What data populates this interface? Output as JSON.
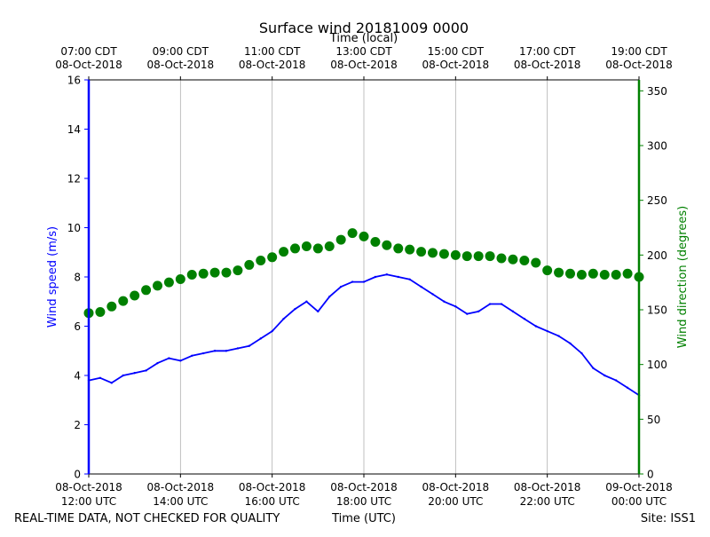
{
  "chart_data": {
    "type": "line+scatter",
    "title": "Surface wind 20181009 0000",
    "top_axis_title": "Time (local)",
    "xlabel": "Time (UTC)",
    "ylabel_left": "Wind speed (m/s)",
    "ylabel_right": "Wind direction (degrees)",
    "x_range_hours_utc": [
      12,
      24
    ],
    "ylim_left": [
      0,
      16
    ],
    "ylim_right": [
      0,
      360
    ],
    "grid": "vertical",
    "bottom_ticks": [
      {
        "hour": 12,
        "line1": "08-Oct-2018",
        "line2": "12:00 UTC"
      },
      {
        "hour": 14,
        "line1": "08-Oct-2018",
        "line2": "14:00 UTC"
      },
      {
        "hour": 16,
        "line1": "08-Oct-2018",
        "line2": "16:00 UTC"
      },
      {
        "hour": 18,
        "line1": "08-Oct-2018",
        "line2": "18:00 UTC"
      },
      {
        "hour": 20,
        "line1": "08-Oct-2018",
        "line2": "20:00 UTC"
      },
      {
        "hour": 22,
        "line1": "08-Oct-2018",
        "line2": "22:00 UTC"
      },
      {
        "hour": 24,
        "line1": "09-Oct-2018",
        "line2": "00:00 UTC"
      }
    ],
    "top_ticks": [
      {
        "hour": 12,
        "line1": "07:00 CDT",
        "line2": "08-Oct-2018"
      },
      {
        "hour": 14,
        "line1": "09:00 CDT",
        "line2": "08-Oct-2018"
      },
      {
        "hour": 16,
        "line1": "11:00 CDT",
        "line2": "08-Oct-2018"
      },
      {
        "hour": 18,
        "line1": "13:00 CDT",
        "line2": "08-Oct-2018"
      },
      {
        "hour": 20,
        "line1": "15:00 CDT",
        "line2": "08-Oct-2018"
      },
      {
        "hour": 22,
        "line1": "17:00 CDT",
        "line2": "08-Oct-2018"
      },
      {
        "hour": 24,
        "line1": "19:00 CDT",
        "line2": "08-Oct-2018"
      }
    ],
    "left_ticks": [
      0,
      2,
      4,
      6,
      8,
      10,
      12,
      14,
      16
    ],
    "right_ticks": [
      0,
      50,
      100,
      150,
      200,
      250,
      300,
      350
    ],
    "series": [
      {
        "name": "Wind speed",
        "axis": "left",
        "style": "line",
        "color": "#0000ff",
        "x": [
          12.0,
          12.25,
          12.5,
          12.75,
          13.0,
          13.25,
          13.5,
          13.75,
          14.0,
          14.25,
          14.5,
          14.75,
          15.0,
          15.25,
          15.5,
          15.75,
          16.0,
          16.25,
          16.5,
          16.75,
          17.0,
          17.25,
          17.5,
          17.75,
          18.0,
          18.25,
          18.5,
          18.75,
          19.0,
          19.25,
          19.5,
          19.75,
          20.0,
          20.25,
          20.5,
          20.75,
          21.0,
          21.25,
          21.5,
          21.75,
          22.0,
          22.25,
          22.5,
          22.75,
          23.0,
          23.25,
          23.5,
          23.75,
          24.0
        ],
        "y": [
          3.8,
          3.9,
          3.7,
          4.0,
          4.1,
          4.2,
          4.5,
          4.7,
          4.6,
          4.8,
          4.9,
          5.0,
          5.0,
          5.1,
          5.2,
          5.5,
          5.8,
          6.3,
          6.7,
          7.0,
          6.6,
          7.2,
          7.6,
          7.8,
          7.8,
          8.0,
          8.1,
          8.0,
          7.9,
          7.6,
          7.3,
          7.0,
          6.8,
          6.5,
          6.6,
          6.9,
          6.9,
          6.6,
          6.3,
          6.0,
          5.8,
          5.6,
          5.3,
          4.9,
          4.3,
          4.0,
          3.8,
          3.5,
          3.2
        ]
      },
      {
        "name": "Wind direction",
        "axis": "right",
        "style": "scatter",
        "color": "#008000",
        "x": [
          12.0,
          12.25,
          12.5,
          12.75,
          13.0,
          13.25,
          13.5,
          13.75,
          14.0,
          14.25,
          14.5,
          14.75,
          15.0,
          15.25,
          15.5,
          15.75,
          16.0,
          16.25,
          16.5,
          16.75,
          17.0,
          17.25,
          17.5,
          17.75,
          18.0,
          18.25,
          18.5,
          18.75,
          19.0,
          19.25,
          19.5,
          19.75,
          20.0,
          20.25,
          20.5,
          20.75,
          21.0,
          21.25,
          21.5,
          21.75,
          22.0,
          22.25,
          22.5,
          22.75,
          23.0,
          23.25,
          23.5,
          23.75,
          24.0
        ],
        "y": [
          147,
          148,
          153,
          158,
          163,
          168,
          172,
          175,
          178,
          182,
          183,
          184,
          184,
          186,
          191,
          195,
          198,
          203,
          206,
          208,
          206,
          208,
          214,
          220,
          217,
          212,
          209,
          206,
          205,
          203,
          202,
          201,
          200,
          199,
          199,
          199,
          197,
          196,
          195,
          193,
          186,
          184,
          183,
          182,
          183,
          182,
          182,
          183,
          180
        ]
      }
    ]
  },
  "footer": {
    "left": "REAL-TIME DATA, NOT CHECKED FOR QUALITY",
    "right": "Site: ISS1"
  }
}
